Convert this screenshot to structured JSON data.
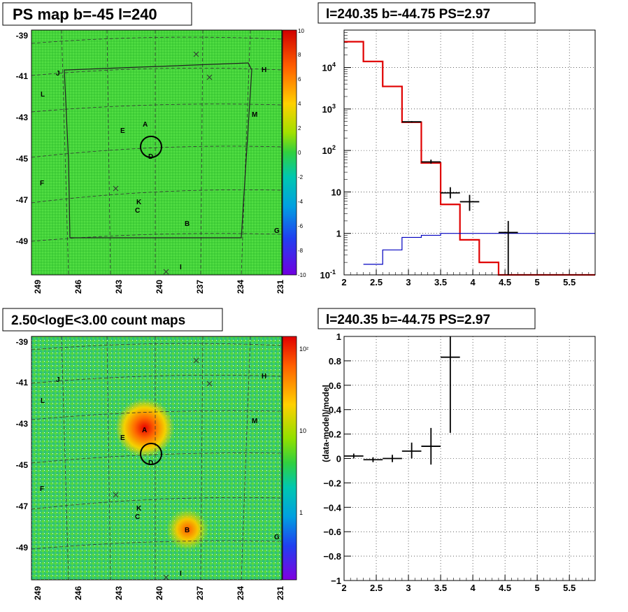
{
  "panels": {
    "ps_map": {
      "title": "PS map b=-45 l=240",
      "y_ticks": [
        "-39",
        "-41",
        "-43",
        "-45",
        "-47",
        "-49"
      ],
      "x_ticks": [
        "249",
        "246",
        "243",
        "240",
        "237",
        "234",
        "231"
      ],
      "colorbar_ticks": [
        "10",
        "8",
        "6",
        "4",
        "2",
        "0",
        "-2",
        "-4",
        "-6",
        "-8",
        "-10"
      ],
      "source_labels": [
        "J",
        "H",
        "L",
        "M",
        "E",
        "A",
        "D",
        "F",
        "K",
        "C",
        "B",
        "G",
        "I"
      ]
    },
    "count_map": {
      "title": "2.50<logE<3.00 count maps",
      "y_ticks": [
        "-39",
        "-41",
        "-43",
        "-45",
        "-47",
        "-49"
      ],
      "x_ticks": [
        "249",
        "246",
        "243",
        "240",
        "237",
        "234",
        "231"
      ],
      "colorbar_ticks": [
        "10²",
        "10",
        "1"
      ],
      "source_labels": [
        "J",
        "H",
        "L",
        "M",
        "E",
        "A",
        "D",
        "F",
        "K",
        "C",
        "B",
        "G",
        "I"
      ]
    },
    "spectrum": {
      "title": "l=240.35 b=-44.75 PS=2.97"
    },
    "residual": {
      "title": "l=240.35 b=-44.75 PS=2.97"
    }
  },
  "chart_data": [
    {
      "type": "heatmap",
      "title": "PS map b=-45 l=240",
      "xlabel": "",
      "ylabel": "",
      "x_ticks": [
        249,
        246,
        243,
        240,
        237,
        234,
        231
      ],
      "y_ticks": [
        -39,
        -41,
        -43,
        -45,
        -47,
        -49
      ],
      "colorbar_range": [
        -10,
        10
      ],
      "colorbar_ticks": [
        10,
        8,
        6,
        4,
        2,
        0,
        -2,
        -4,
        -6,
        -8,
        -10
      ],
      "sources": [
        "J",
        "H",
        "L",
        "M",
        "E",
        "A",
        "D",
        "F",
        "K",
        "C",
        "B",
        "G",
        "I"
      ]
    },
    {
      "type": "line",
      "title": "l=240.35 b=-44.75 PS=2.97",
      "xlabel": "",
      "ylabel": "",
      "xlim": [
        2,
        5.9
      ],
      "ylim": [
        0.1,
        80000
      ],
      "yscale": "log",
      "x_ticks": [
        2,
        2.5,
        3,
        3.5,
        4,
        4.5,
        5,
        5.5
      ],
      "y_ticks": [
        "10^-1",
        "1",
        "10",
        "10^2",
        "10^3",
        "10^4"
      ],
      "grid": true,
      "series": [
        {
          "color": "#e00000",
          "style": "step",
          "edges": [
            2,
            2.3,
            2.6,
            2.9,
            3.2,
            3.5,
            3.8,
            4.1,
            4.4,
            5.9
          ],
          "values": [
            42000,
            14000,
            3500,
            480,
            50,
            5,
            0.7,
            0.2,
            0.09
          ]
        },
        {
          "color": "#0000c0",
          "style": "step",
          "edges": [
            2.3,
            2.6,
            2.9,
            3.2,
            3.5,
            3.8,
            5.9
          ],
          "values": [
            0.18,
            0.4,
            0.8,
            0.9,
            1.0,
            1.0
          ]
        },
        {
          "color": "#000000",
          "style": "errorbars",
          "points": [
            {
              "x": 3.05,
              "y": 490,
              "xerr": 0.15,
              "ylo": 470,
              "yhi": 510
            },
            {
              "x": 3.35,
              "y": 53,
              "xerr": 0.15,
              "ylo": 48,
              "yhi": 60
            },
            {
              "x": 3.65,
              "y": 9.5,
              "xerr": 0.15,
              "ylo": 7,
              "yhi": 13
            },
            {
              "x": 3.95,
              "y": 5.8,
              "xerr": 0.15,
              "ylo": 3.5,
              "yhi": 8.5
            },
            {
              "x": 4.55,
              "y": 1.05,
              "xerr": 0.15,
              "ylo": 0.09,
              "yhi": 2
            }
          ]
        }
      ]
    },
    {
      "type": "heatmap",
      "title": "2.50<logE<3.00 count maps",
      "xlabel": "",
      "ylabel": "",
      "x_ticks": [
        249,
        246,
        243,
        240,
        237,
        234,
        231
      ],
      "y_ticks": [
        -39,
        -41,
        -43,
        -45,
        -47,
        -49
      ],
      "colorbar_scale": "log",
      "colorbar_ticks": [
        "10^2",
        "10",
        "1"
      ],
      "sources": [
        "J",
        "H",
        "L",
        "M",
        "E",
        "A",
        "D",
        "F",
        "K",
        "C",
        "B",
        "G",
        "I"
      ]
    },
    {
      "type": "scatter",
      "title": "l=240.35 b=-44.75 PS=2.97",
      "xlabel": "",
      "ylabel": "(data-model)/model",
      "xlim": [
        2,
        5.9
      ],
      "ylim": [
        -1,
        1
      ],
      "x_ticks": [
        2,
        2.5,
        3,
        3.5,
        4,
        4.5,
        5,
        5.5
      ],
      "y_ticks": [
        -1,
        -0.8,
        -0.6,
        -0.4,
        -0.2,
        0,
        0.2,
        0.4,
        0.6,
        0.8,
        1
      ],
      "grid": true,
      "points": [
        {
          "x": 2.15,
          "y": 0.02,
          "xerr": 0.15,
          "ylo": 0.0,
          "yhi": 0.04
        },
        {
          "x": 2.45,
          "y": -0.01,
          "xerr": 0.15,
          "ylo": -0.03,
          "yhi": 0.01
        },
        {
          "x": 2.75,
          "y": 0.0,
          "xerr": 0.15,
          "ylo": -0.03,
          "yhi": 0.03
        },
        {
          "x": 3.05,
          "y": 0.06,
          "xerr": 0.15,
          "ylo": 0.0,
          "yhi": 0.13
        },
        {
          "x": 3.35,
          "y": 0.1,
          "xerr": 0.15,
          "ylo": -0.05,
          "yhi": 0.25
        },
        {
          "x": 3.65,
          "y": 0.83,
          "xerr": 0.15,
          "ylo": 0.21,
          "yhi": 1.0
        }
      ]
    }
  ]
}
